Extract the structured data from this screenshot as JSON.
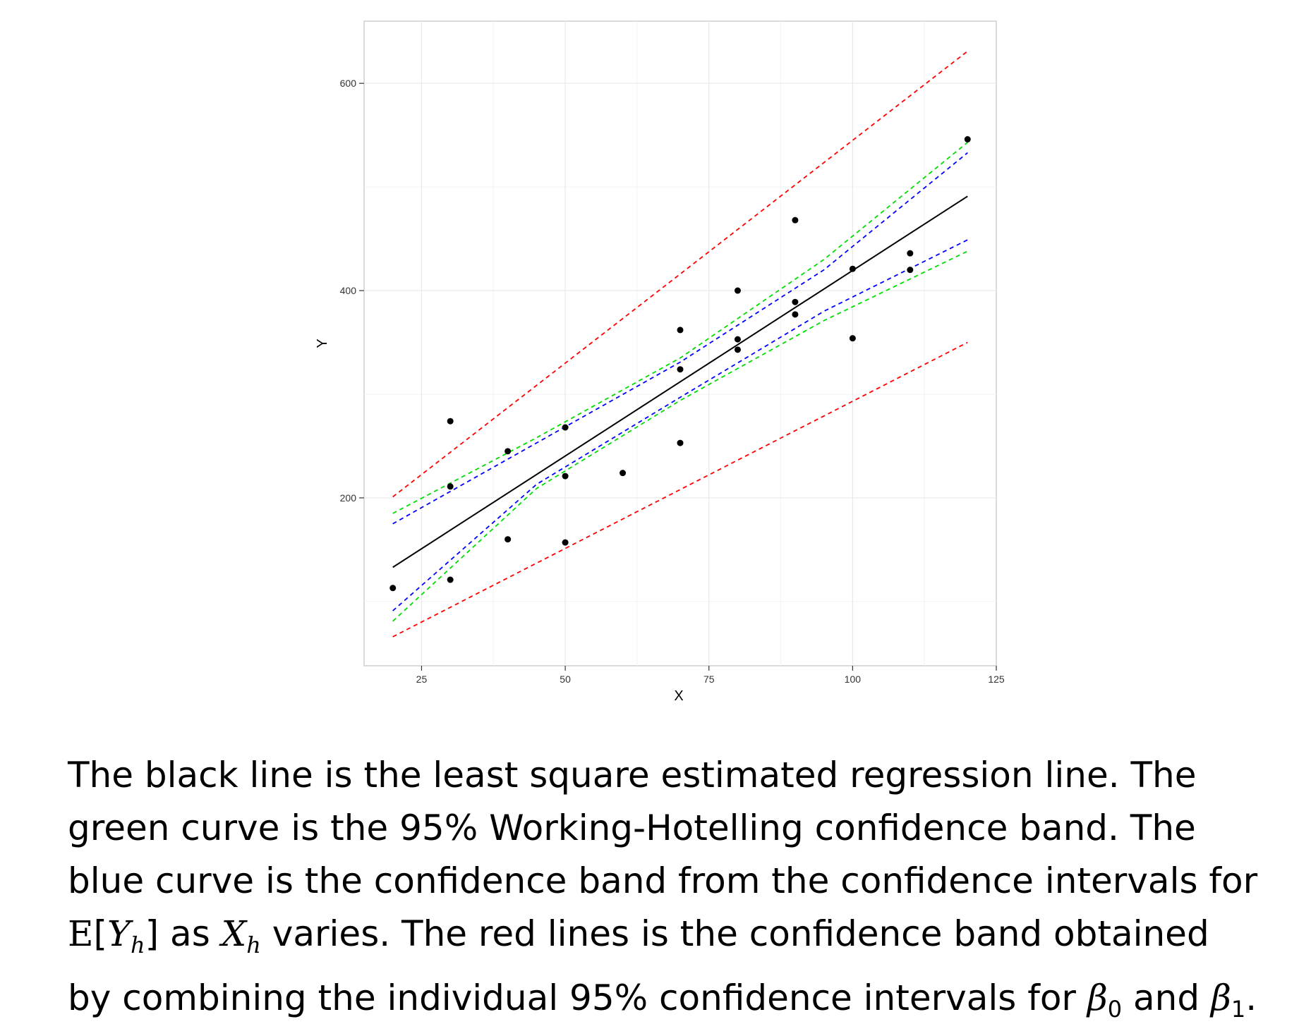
{
  "chart_data": {
    "type": "scatter",
    "xlabel": "X",
    "ylabel": "Y",
    "xlim": [
      15,
      125
    ],
    "ylim": [
      38,
      660
    ],
    "x_ticks": [
      25,
      50,
      75,
      100,
      125
    ],
    "y_ticks": [
      200,
      400,
      600
    ],
    "grid": true,
    "points": [
      {
        "x": 20,
        "y": 113
      },
      {
        "x": 30,
        "y": 274
      },
      {
        "x": 30,
        "y": 211
      },
      {
        "x": 30,
        "y": 121
      },
      {
        "x": 40,
        "y": 245
      },
      {
        "x": 40,
        "y": 160
      },
      {
        "x": 50,
        "y": 268
      },
      {
        "x": 50,
        "y": 221
      },
      {
        "x": 50,
        "y": 157
      },
      {
        "x": 60,
        "y": 224
      },
      {
        "x": 70,
        "y": 362
      },
      {
        "x": 70,
        "y": 324
      },
      {
        "x": 70,
        "y": 253
      },
      {
        "x": 80,
        "y": 400
      },
      {
        "x": 80,
        "y": 353
      },
      {
        "x": 80,
        "y": 343
      },
      {
        "x": 90,
        "y": 468
      },
      {
        "x": 90,
        "y": 389
      },
      {
        "x": 90,
        "y": 377
      },
      {
        "x": 100,
        "y": 421
      },
      {
        "x": 100,
        "y": 354
      },
      {
        "x": 110,
        "y": 436
      },
      {
        "x": 110,
        "y": 420
      },
      {
        "x": 120,
        "y": 546
      }
    ],
    "regression_line": {
      "color": "#000000",
      "x": [
        20,
        120
      ],
      "y": [
        133,
        491
      ]
    },
    "bands": [
      {
        "color": "#ff0000",
        "dashed": true,
        "x": [
          20,
          120
        ],
        "upper": [
          201,
          631
        ],
        "lower": [
          66,
          350
        ]
      },
      {
        "color": "#00dd00",
        "dashed": true,
        "x": [
          20,
          45,
          70,
          95,
          120
        ],
        "upper": [
          185,
          258,
          335,
          430,
          543
        ],
        "lower": [
          81,
          209,
          294,
          371,
          438
        ]
      },
      {
        "color": "#0000ff",
        "dashed": true,
        "x": [
          20,
          45,
          70,
          95,
          120
        ],
        "upper": [
          175,
          253,
          331,
          420,
          533
        ],
        "lower": [
          91,
          213,
          297,
          380,
          449
        ]
      }
    ]
  },
  "caption": {
    "line1": "The black line is the least square estimated regression line.  The",
    "line2": "green curve is the 95% Working-Hotelling confidence band.  The",
    "line3": "blue curve is the confidence band from the confidence intervals for",
    "line4_bb": "E",
    "line4_open": "[",
    "line4_Y": "Y",
    "line4_h1": "h",
    "line4_close": "]",
    "line4_as": " as ",
    "line4_X": "X",
    "line4_h2": "h",
    "line4_rest": " varies.  The red lines is the confidence band obtained",
    "line5_pre": "by combining the individual 95% confidence intervals for ",
    "line5_beta": "β",
    "line5_sub0": "0",
    "line5_and": " and ",
    "line5_sub1": "1",
    "line5_end": "."
  }
}
